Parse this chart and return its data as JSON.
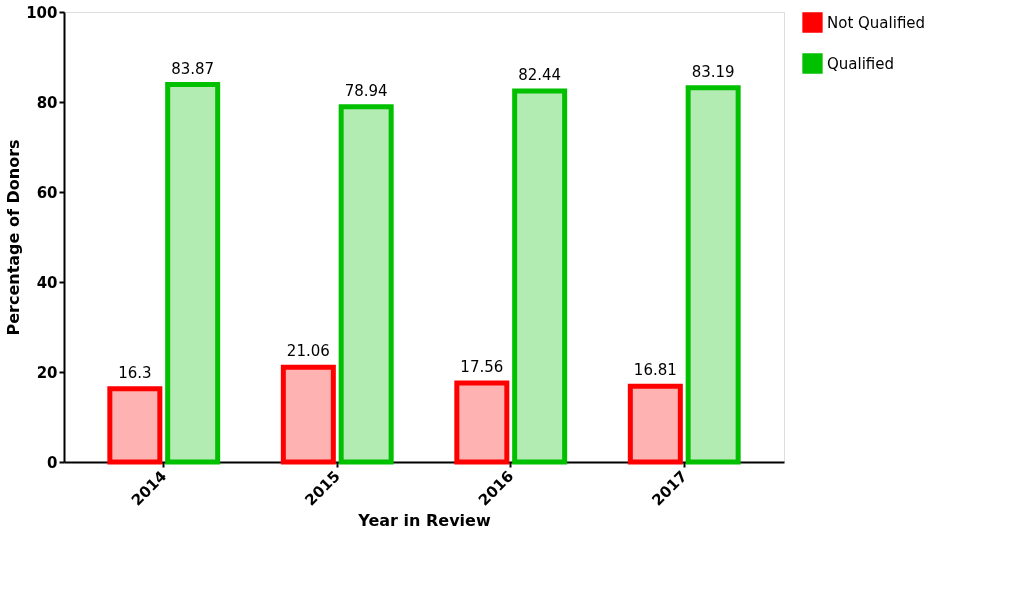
{
  "chart_data": {
    "type": "bar",
    "xlabel": "Year in Review",
    "ylabel": "Percentage of Donors",
    "categories": [
      "2014",
      "2015",
      "2016",
      "2017"
    ],
    "series": [
      {
        "name": "Not Qualified",
        "color": "#ff0000",
        "values": [
          16.3,
          21.06,
          17.56,
          16.81
        ]
      },
      {
        "name": "Qualified",
        "color": "#00c000",
        "values": [
          83.87,
          78.94,
          82.44,
          83.19
        ]
      }
    ],
    "ylim": [
      0,
      100
    ],
    "yticks": [
      0,
      20,
      40,
      60,
      80,
      100
    ],
    "grid": false,
    "legend": "top right",
    "data_labels": true
  }
}
